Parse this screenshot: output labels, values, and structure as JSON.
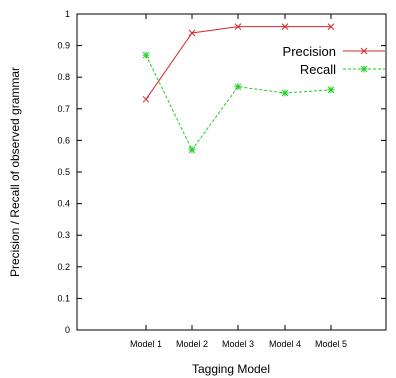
{
  "chart_data": {
    "type": "line",
    "xlabel": "Tagging Model",
    "ylabel": "Precision / Recall of observed grammar",
    "categories": [
      "Model 1",
      "Model 2",
      "Model 3",
      "Model 4",
      "Model 5"
    ],
    "ylim": [
      0,
      1
    ],
    "yticks": [
      "0",
      "0.1",
      "0.2",
      "0.3",
      "0.4",
      "0.5",
      "0.6",
      "0.7",
      "0.8",
      "0.9",
      "1"
    ],
    "grid": false,
    "legend": "top-right",
    "series": [
      {
        "name": "Precision",
        "values": [
          0.73,
          0.94,
          0.96,
          0.96,
          0.96
        ],
        "color": "#d62728",
        "dash": "solid",
        "marker": "x"
      },
      {
        "name": "Recall",
        "values": [
          0.87,
          0.57,
          0.77,
          0.75,
          0.76
        ],
        "color": "#22cc22",
        "dash": "dashed",
        "marker": "asterisk"
      }
    ]
  }
}
